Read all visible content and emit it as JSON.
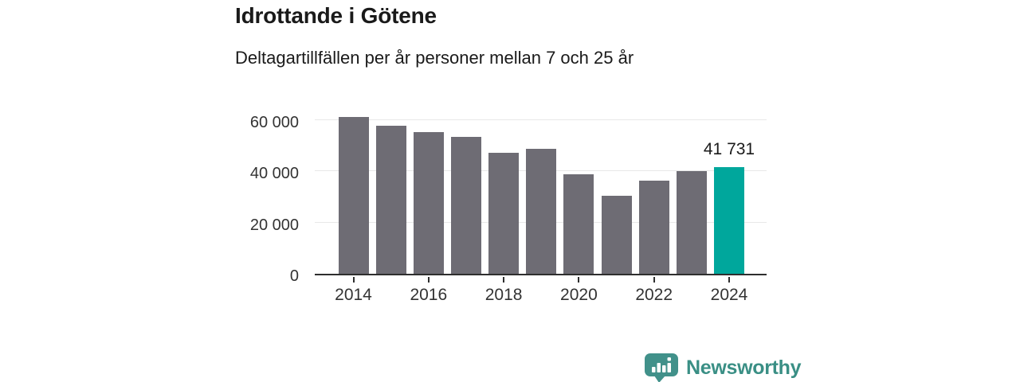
{
  "header": {
    "title": "Idrottande i Götene",
    "subtitle": "Deltagartillfällen per år personer mellan 7 och 25 år"
  },
  "chart_data": {
    "type": "bar",
    "title": "Idrottande i Götene",
    "subtitle": "Deltagartillfällen per år personer mellan 7 och 25 år",
    "categories": [
      "2014",
      "2015",
      "2016",
      "2017",
      "2018",
      "2019",
      "2020",
      "2021",
      "2022",
      "2023",
      "2024"
    ],
    "values": [
      61000,
      57700,
      55200,
      53400,
      47100,
      48800,
      38900,
      30500,
      36300,
      40000,
      41731
    ],
    "xlabel": "",
    "ylabel": "",
    "ylim": [
      0,
      64000
    ],
    "y_ticks": [
      0,
      20000,
      40000,
      60000
    ],
    "y_tick_labels": [
      "0",
      "20 000",
      "40 000",
      "60 000"
    ],
    "x_tick_years": [
      "2014",
      "2016",
      "2018",
      "2020",
      "2022",
      "2024"
    ],
    "grid": "horizontal",
    "legend": "none",
    "bar_color": "#6e6c74",
    "highlight_color": "#00a79c",
    "highlight_index": 10,
    "annotation": {
      "index": 10,
      "text": "41 731"
    }
  },
  "footer": {
    "brand": "Newsworthy",
    "brand_color": "#3a8f85",
    "logo_icon_color": "#41918a",
    "logo_icon": "bar-chart-speech-bubble-icon"
  }
}
